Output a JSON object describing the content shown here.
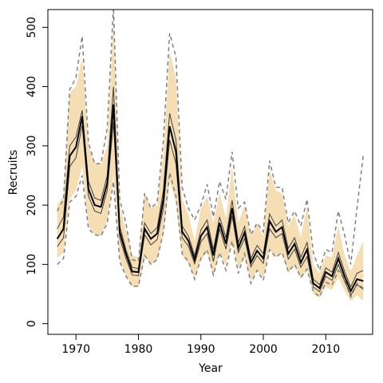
{
  "chart_data": {
    "type": "line",
    "xlabel": "Year",
    "ylabel": "Recruits",
    "xlim": [
      1965.5,
      2017.5
    ],
    "ylim": [
      -18,
      530
    ],
    "x_ticks": [
      1970,
      1980,
      1990,
      2000,
      2010
    ],
    "y_ticks": [
      0,
      100,
      200,
      300,
      400,
      500
    ],
    "colors": {
      "band": "#f5deb3",
      "median": "#000000",
      "dashed": "#808080",
      "inner": "#404040"
    },
    "x": [
      1967,
      1968,
      1969,
      1970,
      1971,
      1972,
      1973,
      1974,
      1975,
      1976,
      1977,
      1978,
      1979,
      1980,
      1981,
      1982,
      1983,
      1984,
      1985,
      1986,
      1987,
      1988,
      1989,
      1990,
      1991,
      1992,
      1993,
      1994,
      1995,
      1996,
      1997,
      1998,
      1999,
      2000,
      2001,
      2002,
      2003,
      2004,
      2005,
      2006,
      2007,
      2008,
      2009,
      2010,
      2011,
      2012,
      2013,
      2014,
      2015,
      2016
    ],
    "series": [
      {
        "role": "median",
        "values": [
          143,
          160,
          283,
          298,
          350,
          227,
          200,
          197,
          237,
          370,
          155,
          118,
          88,
          87,
          160,
          143,
          152,
          210,
          333,
          290,
          155,
          140,
          108,
          148,
          163,
          115,
          170,
          135,
          195,
          128,
          154,
          103,
          123,
          110,
          173,
          155,
          163,
          118,
          135,
          103,
          125,
          68,
          60,
          87,
          80,
          110,
          80,
          55,
          75,
          72
        ]
      },
      {
        "role": "band_upper",
        "values": [
          200,
          215,
          390,
          400,
          450,
          300,
          272,
          268,
          300,
          510,
          200,
          158,
          115,
          112,
          220,
          195,
          200,
          290,
          460,
          415,
          210,
          185,
          140,
          195,
          215,
          170,
          220,
          178,
          265,
          170,
          200,
          148,
          168,
          148,
          260,
          225,
          220,
          165,
          183,
          145,
          200,
          100,
          85,
          115,
          112,
          165,
          115,
          88,
          115,
          140
        ]
      },
      {
        "role": "band_lower",
        "values": [
          110,
          120,
          210,
          225,
          265,
          165,
          150,
          148,
          175,
          250,
          110,
          82,
          62,
          62,
          115,
          100,
          108,
          150,
          240,
          205,
          115,
          102,
          77,
          108,
          120,
          82,
          120,
          98,
          140,
          93,
          112,
          72,
          90,
          78,
          125,
          112,
          118,
          85,
          98,
          75,
          90,
          50,
          44,
          62,
          57,
          78,
          55,
          38,
          48,
          38
        ]
      },
      {
        "role": "upper_dashed",
        "values": [
          190,
          210,
          395,
          415,
          485,
          305,
          270,
          270,
          330,
          535,
          210,
          170,
          108,
          105,
          220,
          195,
          205,
          310,
          490,
          450,
          230,
          195,
          175,
          200,
          235,
          180,
          240,
          210,
          290,
          195,
          205,
          150,
          170,
          155,
          275,
          230,
          230,
          170,
          190,
          165,
          210,
          120,
          90,
          125,
          120,
          190,
          150,
          100,
          195,
          285
        ]
      },
      {
        "role": "lower_dashed",
        "values": [
          100,
          110,
          205,
          215,
          250,
          160,
          150,
          148,
          170,
          240,
          105,
          80,
          63,
          63,
          115,
          100,
          108,
          155,
          255,
          215,
          118,
          105,
          75,
          110,
          125,
          82,
          120,
          90,
          140,
          85,
          118,
          68,
          90,
          73,
          125,
          112,
          120,
          88,
          100,
          78,
          92,
          55,
          45,
          70,
          65,
          90,
          75,
          45,
          68,
          60
        ]
      },
      {
        "role": "inner_upper",
        "values": [
          160,
          180,
          300,
          315,
          360,
          240,
          212,
          208,
          250,
          400,
          165,
          125,
          95,
          93,
          170,
          152,
          162,
          225,
          355,
          310,
          165,
          148,
          115,
          158,
          175,
          125,
          180,
          145,
          208,
          137,
          164,
          110,
          132,
          118,
          185,
          165,
          175,
          127,
          145,
          112,
          137,
          75,
          66,
          94,
          87,
          120,
          88,
          62,
          85,
          90
        ]
      },
      {
        "role": "inner_lower",
        "values": [
          130,
          145,
          265,
          280,
          335,
          215,
          190,
          186,
          225,
          340,
          145,
          110,
          82,
          81,
          150,
          133,
          142,
          195,
          310,
          270,
          145,
          131,
          101,
          138,
          152,
          105,
          160,
          126,
          182,
          120,
          144,
          96,
          115,
          102,
          160,
          145,
          152,
          109,
          126,
          95,
          113,
          62,
          54,
          80,
          73,
          100,
          72,
          48,
          66,
          58
        ]
      }
    ]
  }
}
